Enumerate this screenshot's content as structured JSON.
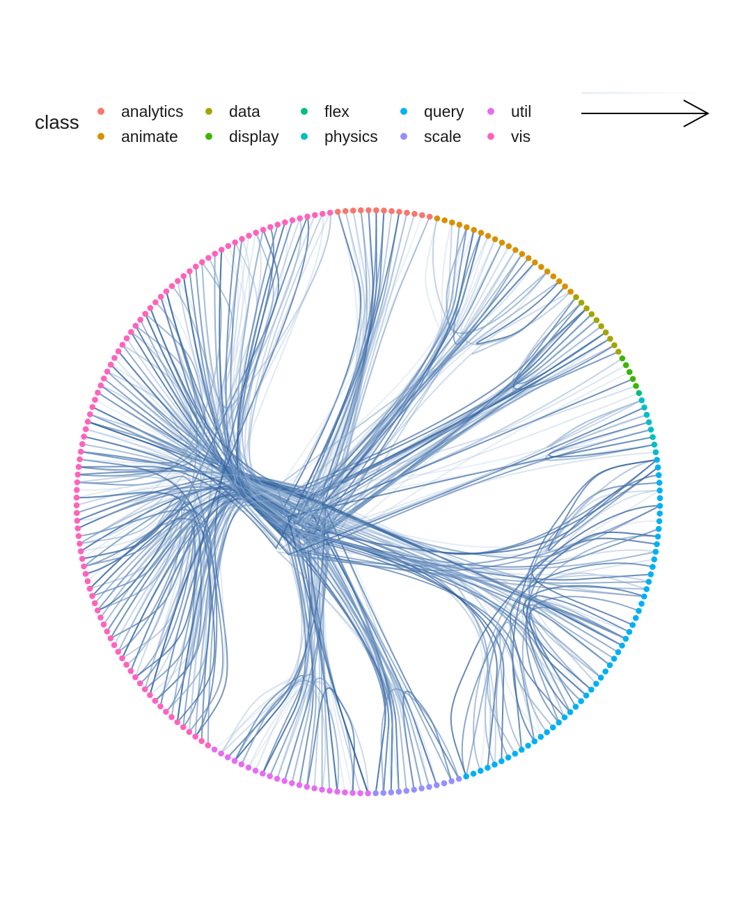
{
  "legend": {
    "title": "class",
    "items": [
      {
        "label": "analytics",
        "color": "#F8766D"
      },
      {
        "label": "animate",
        "color": "#D89000"
      },
      {
        "label": "data",
        "color": "#A3A500"
      },
      {
        "label": "display",
        "color": "#39B600"
      },
      {
        "label": "flex",
        "color": "#00BF7D"
      },
      {
        "label": "physics",
        "color": "#00BFC4"
      },
      {
        "label": "query",
        "color": "#00B0F6"
      },
      {
        "label": "scale",
        "color": "#9590FF"
      },
      {
        "label": "util",
        "color": "#E76BF3"
      },
      {
        "label": "vis",
        "color": "#FF62BC"
      }
    ],
    "edge_direction_icon": "arrow-right-icon",
    "edge_gradient": [
      "#e8eef6",
      "#2b5d9c"
    ]
  },
  "diagram": {
    "type": "hierarchical-edge-bundling",
    "node_counts": {
      "analytics": 13,
      "animate": 21,
      "data": 10,
      "display": 5,
      "flex": 1,
      "physics": 8,
      "query": 53,
      "scale": 12,
      "util": 22,
      "vis": 93
    },
    "edge_color_low": "#c6dbef",
    "edge_color_high": "#2b5d9c"
  }
}
